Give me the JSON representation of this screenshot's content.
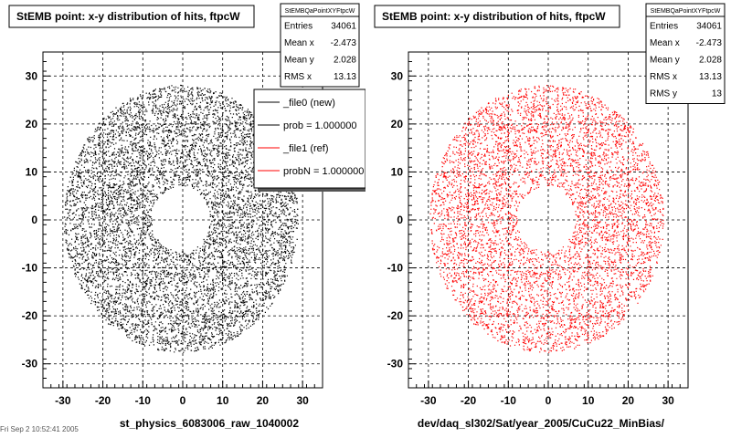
{
  "chart_data": [
    {
      "type": "scatter",
      "title": "StEMB point: x-y distribution of hits, ftpcW",
      "xlabel": "st_physics_6083006_raw_1040002",
      "ylabel": "",
      "xlim": [
        -35,
        35
      ],
      "ylim": [
        -35,
        35
      ],
      "xticks": [
        -30,
        -20,
        -10,
        0,
        10,
        20,
        30
      ],
      "yticks": [
        -30,
        -20,
        -10,
        0,
        10,
        20,
        30
      ],
      "grid": true,
      "marker_color": "#000000",
      "distribution": {
        "outer_radius": 28.5,
        "inner_radius": 7,
        "sectors": 10,
        "sample_points": 9000
      },
      "stats": {
        "name": "StEMBQaPointXYFtpcW",
        "rows": [
          {
            "label": "Entries",
            "value": "34061"
          },
          {
            "label": "Mean x",
            "value": "-2.473"
          },
          {
            "label": "Mean y",
            "value": "2.028"
          },
          {
            "label": "RMS x",
            "value": "13.13"
          }
        ]
      },
      "legend": {
        "position": "top-right",
        "entries": [
          {
            "label": "_file0 (new)",
            "color": "#000000"
          },
          {
            "label": "prob = 1.000000",
            "color": "#000000"
          },
          {
            "label": "_file1 (ref)",
            "color": "#ff0000"
          },
          {
            "label": "probN = 1.000000",
            "color": "#ff0000"
          }
        ]
      }
    },
    {
      "type": "scatter",
      "title": "StEMB point: x-y distribution of hits, ftpcW",
      "xlabel": "dev/daq_sl302/Sat/year_2005/CuCu22_MinBias/",
      "ylabel": "",
      "xlim": [
        -35,
        35
      ],
      "ylim": [
        -35,
        35
      ],
      "xticks": [
        -30,
        -20,
        -10,
        0,
        10,
        20,
        30
      ],
      "yticks": [
        -30,
        -20,
        -10,
        0,
        10,
        20,
        30
      ],
      "grid": true,
      "marker_color": "#ff0000",
      "distribution": {
        "outer_radius": 28.5,
        "inner_radius": 7,
        "sectors": 10,
        "sample_points": 9000
      },
      "stats": {
        "name": "StEMBQaPointXYFtpcW",
        "rows": [
          {
            "label": "Entries",
            "value": "34061"
          },
          {
            "label": "Mean x",
            "value": "-2.473"
          },
          {
            "label": "Mean y",
            "value": "2.028"
          },
          {
            "label": "RMS x",
            "value": "13.13"
          },
          {
            "label": "RMS y",
            "value": "13"
          }
        ]
      }
    }
  ],
  "footer_date": "Fri Sep 2 10:52:41 2005"
}
